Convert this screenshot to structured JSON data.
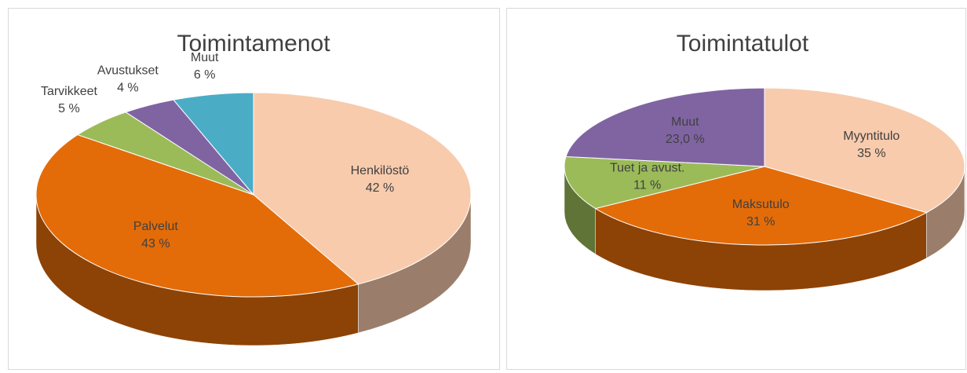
{
  "chart_data": [
    {
      "type": "pie",
      "title": "Toimintamenot",
      "categories": [
        "Henkilöstö",
        "Palvelut",
        "Tarvikkeet",
        "Avustukset",
        "Muut"
      ],
      "values": [
        42,
        43,
        5,
        4,
        6
      ],
      "value_labels": [
        "42 %",
        "43 %",
        "5 %",
        "4 %",
        "6 %"
      ],
      "colors": [
        "#f8cbad",
        "#e36c09",
        "#9bbb59",
        "#8064a2",
        "#4bacc6"
      ]
    },
    {
      "type": "pie",
      "title": "Toimintatulot",
      "categories": [
        "Myyntitulo",
        "Maksutulo",
        "Tuet ja avust.",
        "Muut"
      ],
      "values": [
        35,
        31,
        11,
        23.0
      ],
      "value_labels": [
        "35 %",
        "31 %",
        "11 %",
        "23,0 %"
      ],
      "colors": [
        "#f8cbad",
        "#e36c09",
        "#9bbb59",
        "#8064a2"
      ]
    }
  ]
}
